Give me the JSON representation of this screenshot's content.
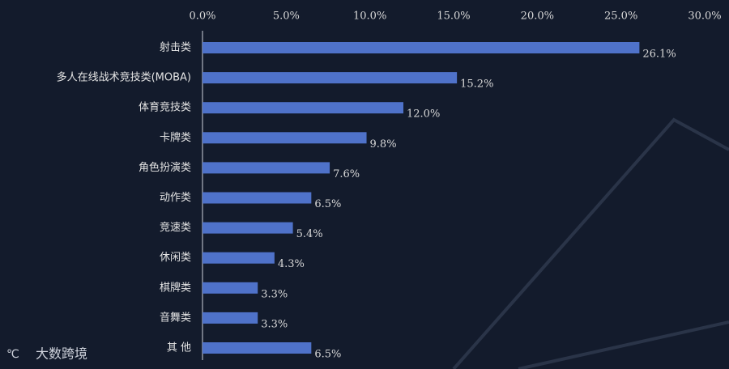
{
  "chart_data": {
    "type": "bar",
    "orientation": "horizontal",
    "categories": [
      "射击类",
      "多人在线战术竞技类(MOBA)",
      "体育竞技类",
      "卡牌类",
      "角色扮演类",
      "动作类",
      "竞速类",
      "休闲类",
      "棋牌类",
      "音舞类",
      "其 他"
    ],
    "values": [
      26.1,
      15.2,
      12.0,
      9.8,
      7.6,
      6.5,
      5.4,
      4.3,
      3.3,
      3.3,
      6.5
    ],
    "value_labels": [
      "26.1%",
      "15.2%",
      "12.0%",
      "9.8%",
      "7.6%",
      "6.5%",
      "5.4%",
      "4.3%",
      "3.3%",
      "3.3%",
      "6.5%"
    ],
    "color": "#4f72c9",
    "xlim": [
      0,
      30
    ],
    "xticks": [
      {
        "value": 0,
        "label": "0.0%"
      },
      {
        "value": 5,
        "label": "5.0%"
      },
      {
        "value": 10,
        "label": "10.0%"
      },
      {
        "value": 15,
        "label": "15.0%"
      },
      {
        "value": 20,
        "label": "20.0%"
      },
      {
        "value": 25,
        "label": "25.0%"
      },
      {
        "value": 30,
        "label": "30.0%"
      }
    ],
    "grid": false,
    "watermark": "大数跨境"
  }
}
